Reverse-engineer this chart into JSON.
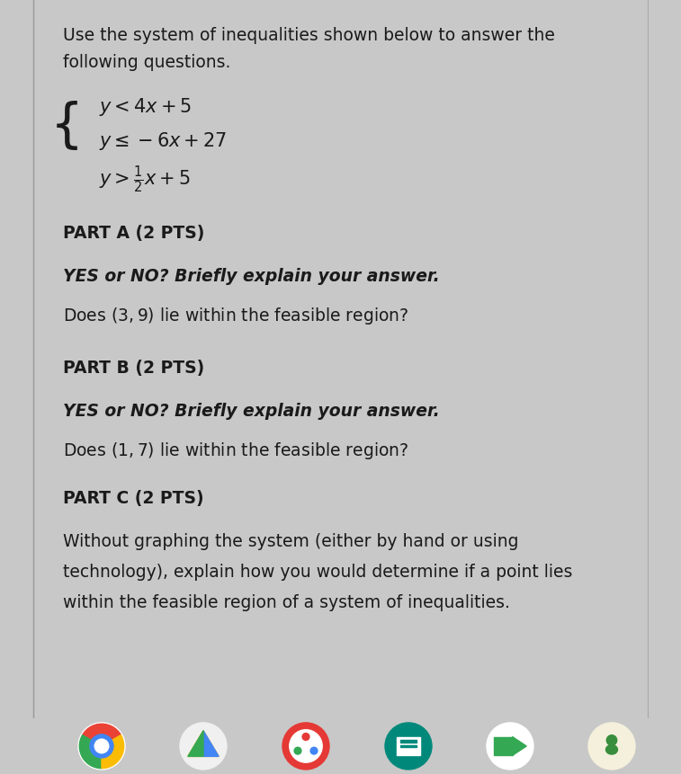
{
  "bg_color": "#c8c8c8",
  "content_bg": "#e5e3e0",
  "left_border_color": "#b0aeab",
  "text_color": "#1a1a1a",
  "header_text1": "Use the system of inequalities shown below to answer the",
  "header_text2": "following questions.",
  "ineq_line1": "$y < 4x + 5$",
  "ineq_line2": "$y \\leq -6x + 27$",
  "ineq_line3": "$y > \\frac{1}{2}x + 5$",
  "part_a_header": "PART A (2 PTS)",
  "part_a_prompt": "YES or NO? Briefly explain your answer.",
  "part_a_question": "Does $(3, 9)$ lie within the feasible region?",
  "part_b_header": "PART B (2 PTS)",
  "part_b_prompt": "YES or NO? Briefly explain your answer.",
  "part_b_question": "Does $(1, 7)$ lie within the feasible region?",
  "part_c_header": "PART C (2 PTS)",
  "part_c_text1": "Without graphing the system (either by hand or using",
  "part_c_text2": "technology), explain how you would determine if a point lies",
  "part_c_text3": "within the feasible region of a system of inequalities.",
  "figsize": [
    7.57,
    8.62
  ],
  "dpi": 100
}
